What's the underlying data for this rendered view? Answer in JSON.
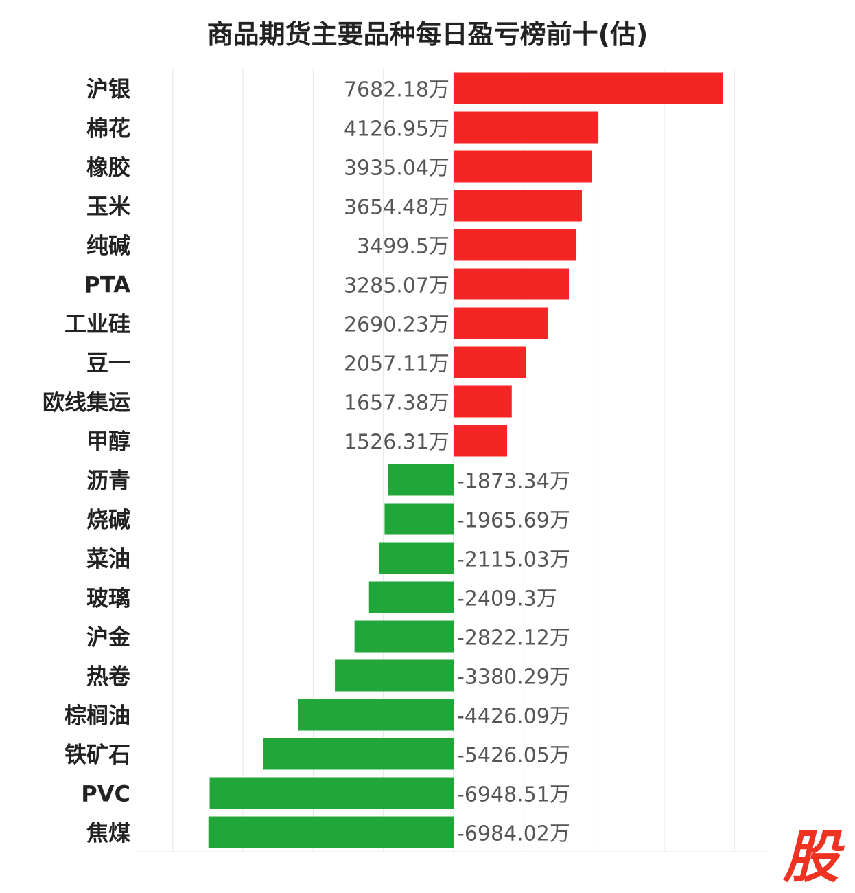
{
  "chart_data": {
    "type": "bar",
    "orientation": "horizontal",
    "title": "商品期货主要品种每日盈亏榜前十(估)",
    "unit_suffix": "万",
    "categories": [
      "沪银",
      "棉花",
      "橡胶",
      "玉米",
      "纯碱",
      "PTA",
      "工业硅",
      "豆一",
      "欧线集运",
      "甲醇",
      "沥青",
      "烧碱",
      "菜油",
      "玻璃",
      "沪金",
      "热卷",
      "棕榈油",
      "铁矿石",
      "PVC",
      "焦煤"
    ],
    "values": [
      7682.18,
      4126.95,
      3935.04,
      3654.48,
      3499.5,
      3285.07,
      2690.23,
      2057.11,
      1657.38,
      1526.31,
      -1873.34,
      -1965.69,
      -2115.03,
      -2409.3,
      -2822.12,
      -3380.29,
      -4426.09,
      -5426.05,
      -6948.51,
      -6984.02
    ],
    "value_labels": [
      "7682.18万",
      "4126.95万",
      "3935.04万",
      "3654.48万",
      "3499.5万",
      "3285.07万",
      "2690.23万",
      "2057.11万",
      "1657.38万",
      "1526.31万",
      "-1873.34万",
      "-1965.69万",
      "-2115.03万",
      "-2409.3万",
      "-2822.12万",
      "-3380.29万",
      "-4426.09万",
      "-5426.05万",
      "-6948.51万",
      "-6984.02万"
    ],
    "xlim": [
      -9000,
      9000
    ],
    "grid": true,
    "colors": {
      "positive": "#f42525",
      "negative": "#21a63a",
      "label": "#555555",
      "category": "#222222",
      "grid": "#e6e6e6"
    }
  },
  "brand": {
    "logo_text": "股",
    "logo_color": "#ee3322"
  }
}
